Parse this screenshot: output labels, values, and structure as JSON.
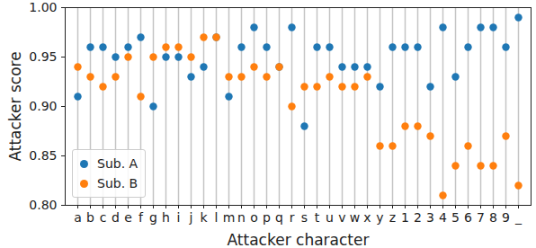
{
  "chart_data": {
    "type": "scatter",
    "x_label": "Attacker character",
    "y_label": "Attacker score",
    "categories": [
      "a",
      "b",
      "c",
      "d",
      "e",
      "f",
      "g",
      "h",
      "i",
      "j",
      "k",
      "l",
      "m",
      "n",
      "o",
      "p",
      "q",
      "r",
      "s",
      "t",
      "u",
      "v",
      "w",
      "x",
      "y",
      "z",
      "1",
      "2",
      "3",
      "4",
      "5",
      "6",
      "7",
      "8",
      "9",
      "_"
    ],
    "series": [
      {
        "name": "Sub. A",
        "color": "#1f77b4",
        "values": [
          0.91,
          0.96,
          0.96,
          0.95,
          0.96,
          0.97,
          0.9,
          0.95,
          0.95,
          0.93,
          0.94,
          0.97,
          0.91,
          0.96,
          0.98,
          0.96,
          0.94,
          0.98,
          0.88,
          0.96,
          0.96,
          0.94,
          0.94,
          0.94,
          0.92,
          0.96,
          0.96,
          0.96,
          0.92,
          0.98,
          0.93,
          0.96,
          0.98,
          0.98,
          0.96,
          0.99
        ]
      },
      {
        "name": "Sub. B",
        "color": "#ff7f0e",
        "values": [
          0.94,
          0.93,
          0.92,
          0.93,
          0.95,
          0.91,
          0.95,
          0.96,
          0.96,
          0.95,
          0.97,
          0.97,
          0.93,
          0.93,
          0.94,
          0.93,
          0.94,
          0.9,
          0.92,
          0.92,
          0.93,
          0.92,
          0.92,
          0.93,
          0.86,
          0.86,
          0.88,
          0.88,
          0.87,
          0.81,
          0.84,
          0.86,
          0.84,
          0.84,
          0.87,
          0.82
        ]
      }
    ],
    "ylim": [
      0.8,
      1.0
    ],
    "yticks": [
      {
        "value": 0.8,
        "label": "0.80"
      },
      0.85,
      {
        "value": 0.9,
        "label": "0.90"
      },
      0.95,
      {
        "value": 1.0,
        "label": "1.00"
      }
    ],
    "grid": "x",
    "legend": "lower left"
  }
}
